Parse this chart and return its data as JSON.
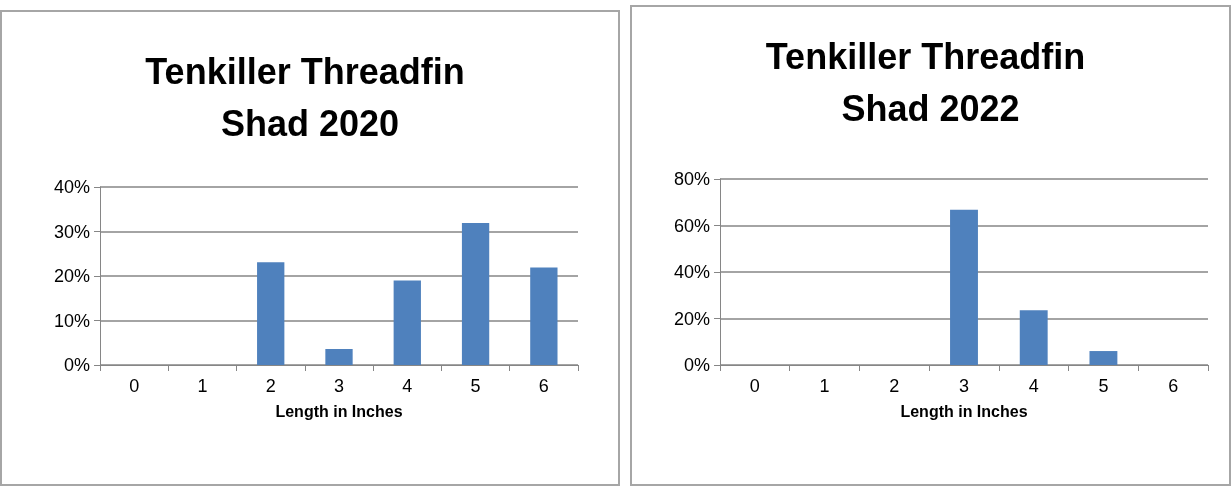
{
  "chart_data": [
    {
      "type": "bar",
      "title": "Tenkiller Threadfin Shad 2020",
      "xlabel": "Length in Inches",
      "categories": [
        "0",
        "1",
        "2",
        "3",
        "4",
        "5",
        "6"
      ],
      "values": [
        0,
        0,
        23.1,
        3.6,
        19.0,
        31.9,
        21.9
      ],
      "color": "#4f81bd",
      "ylim": [
        0,
        40
      ],
      "yticks": [
        {
          "value": 0,
          "label": "0%"
        },
        {
          "value": 10,
          "label": "10%"
        },
        {
          "value": 20,
          "label": "20%"
        },
        {
          "value": 30,
          "label": "30%"
        },
        {
          "value": 40,
          "label": "40%"
        }
      ],
      "grid": "y"
    },
    {
      "type": "bar",
      "title": "Tenkiller Threadfin Shad 2022",
      "xlabel": "Length in Inches",
      "categories": [
        "0",
        "1",
        "2",
        "3",
        "4",
        "5",
        "6"
      ],
      "values": [
        0,
        0,
        0,
        66.8,
        23.5,
        6.0,
        0
      ],
      "color": "#4f81bd",
      "ylim": [
        0,
        80
      ],
      "yticks": [
        {
          "value": 0,
          "label": "0%"
        },
        {
          "value": 20,
          "label": "20%"
        },
        {
          "value": 40,
          "label": "40%"
        },
        {
          "value": 60,
          "label": "60%"
        },
        {
          "value": 80,
          "label": "80%"
        }
      ],
      "grid": "y"
    }
  ]
}
